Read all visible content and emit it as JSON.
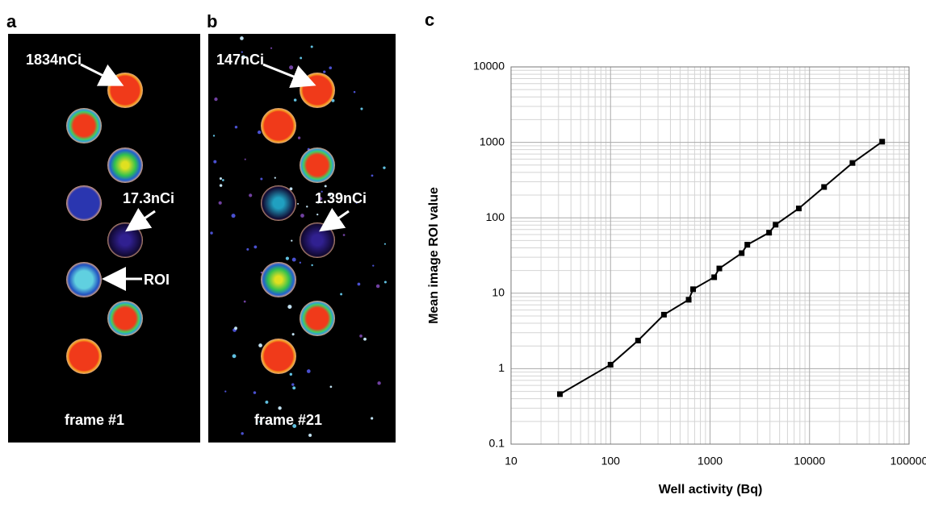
{
  "panels": [
    {
      "letter": "a",
      "annotations": [
        "1834nCi",
        "17.3nCi",
        "ROI"
      ],
      "caption": "frame #1"
    },
    {
      "letter": "b",
      "annotations": [
        "147nCi",
        "1.39nCi"
      ],
      "caption": "frame #21"
    }
  ],
  "chart_data": {
    "type": "line",
    "letter": "c",
    "x_label": "Well activity (Bq)",
    "y_label": "Mean image ROI value",
    "x": [
      31,
      100,
      189,
      344,
      610,
      676,
      1100,
      1240,
      2080,
      2370,
      3920,
      4560,
      7800,
      14000,
      27000,
      53700
    ],
    "values": [
      0.46,
      1.13,
      2.36,
      5.2,
      8.2,
      11.3,
      16.3,
      21.3,
      34,
      44,
      63.5,
      81,
      133,
      256,
      533,
      1020
    ],
    "color": "#000000",
    "xscale": "log",
    "yscale": "log",
    "xlim": [
      10,
      100000
    ],
    "ylim": [
      0.1,
      10000
    ],
    "xticks": [
      10,
      100,
      1000,
      10000,
      100000
    ],
    "yticks": [
      0.1,
      1,
      10,
      100,
      1000,
      10000
    ],
    "grid": true,
    "minor_grid": true
  }
}
